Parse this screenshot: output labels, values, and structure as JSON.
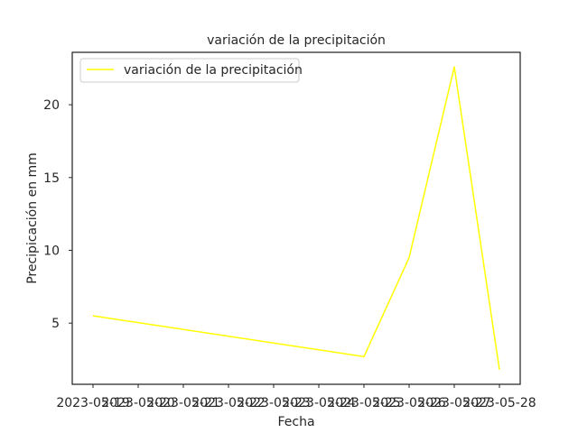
{
  "chart_data": {
    "type": "line",
    "title": "variación de la precipitación",
    "xlabel": "Fecha",
    "ylabel": "Precipicación en mm",
    "x": [
      "2023-05-19",
      "2023-05-20",
      "2023-05-21",
      "2023-05-22",
      "2023-05-23",
      "2023-05-24",
      "2023-05-25",
      "2023-05-26",
      "2023-05-27",
      "2023-05-28"
    ],
    "x_tick_labels": [
      "2023-05-19",
      "2023-05-20",
      "2023-05-21",
      "2023-05-22",
      "2023-05-23",
      "2023-05-24",
      "2023-05-25",
      "2023-05-26",
      "2023-05-27",
      "2023-05-28"
    ],
    "y_ticks": [
      5,
      10,
      15,
      20
    ],
    "ylim": [
      0.8,
      23.6
    ],
    "grid": false,
    "legend_position": "top-left",
    "series": [
      {
        "name": "variación de la precipitación",
        "color": "#ffff00",
        "points": [
          {
            "x": "2023-05-19",
            "y": 5.5
          },
          {
            "x": "2023-05-25",
            "y": 2.7
          },
          {
            "x": "2023-05-26",
            "y": 9.5
          },
          {
            "x": "2023-05-27",
            "y": 22.6
          },
          {
            "x": "2023-05-28",
            "y": 1.8
          }
        ]
      }
    ]
  }
}
